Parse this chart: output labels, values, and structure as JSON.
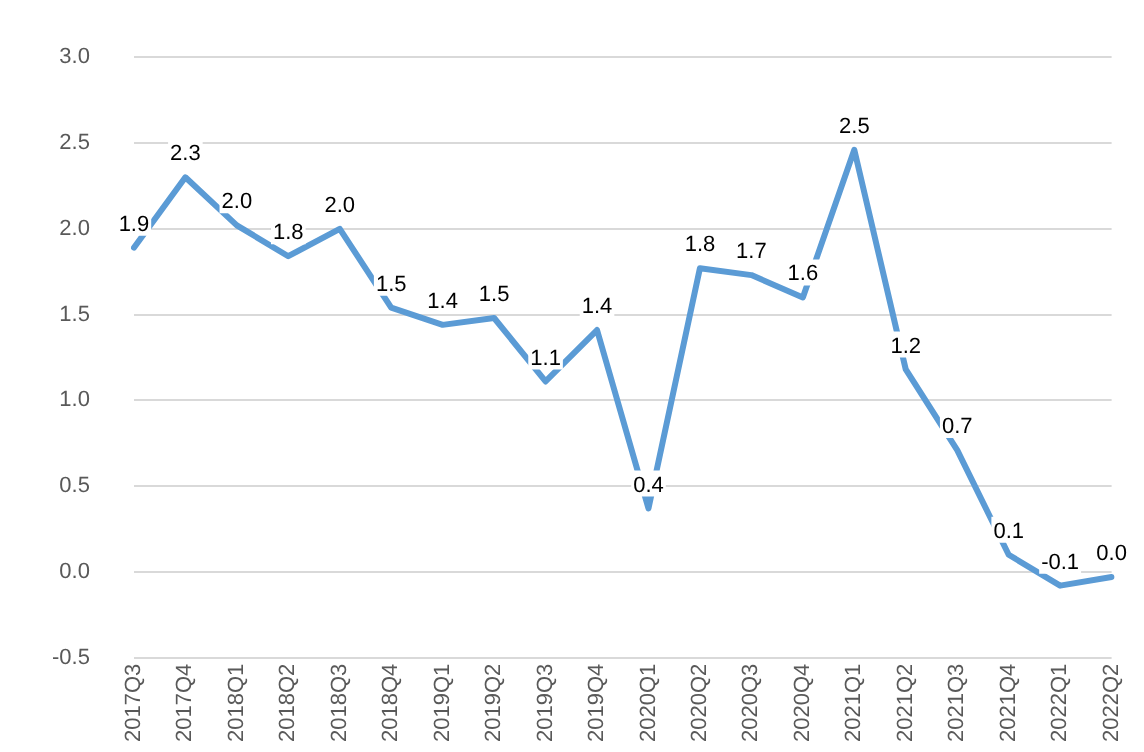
{
  "chart_data": {
    "type": "line",
    "categories": [
      "2017Q3",
      "2017Q4",
      "2018Q1",
      "2018Q2",
      "2018Q3",
      "2018Q4",
      "2019Q1",
      "2019Q2",
      "2019Q3",
      "2019Q4",
      "2020Q1",
      "2020Q2",
      "2020Q3",
      "2020Q4",
      "2021Q1",
      "2021Q2",
      "2021Q3",
      "2021Q4",
      "2022Q1",
      "2022Q2"
    ],
    "series": [
      {
        "color": "#5b9bd5",
        "values": [
          1.89,
          2.3,
          2.02,
          1.84,
          2.0,
          1.54,
          1.44,
          1.48,
          1.11,
          1.41,
          0.37,
          1.77,
          1.73,
          1.6,
          2.46,
          1.18,
          0.71,
          0.1,
          -0.08,
          -0.03
        ],
        "value_labels": [
          "1.9",
          "2.3",
          "2.0",
          "1.8",
          "2.0",
          "1.5",
          "1.4",
          "1.5",
          "1.1",
          "1.4",
          "0.4",
          "1.8",
          "1.7",
          "1.6",
          "2.5",
          "1.2",
          "0.7",
          "0.1",
          "-0.1",
          "0.0"
        ]
      }
    ],
    "ylim": [
      -0.5,
      3.0
    ],
    "yticks": [
      {
        "value": -0.5,
        "label": "-0.5"
      },
      {
        "value": 0,
        "label": "0.0"
      },
      {
        "value": 0.5,
        "label": "0.5"
      },
      {
        "value": 1,
        "label": "1.0"
      },
      {
        "value": 1.5,
        "label": "1.5"
      },
      {
        "value": 2,
        "label": "2.0"
      },
      {
        "value": 2.5,
        "label": "2.5"
      },
      {
        "value": 3,
        "label": "3.0"
      }
    ],
    "grid": "y",
    "marker": "none",
    "line_style": "solid",
    "legend": false
  }
}
